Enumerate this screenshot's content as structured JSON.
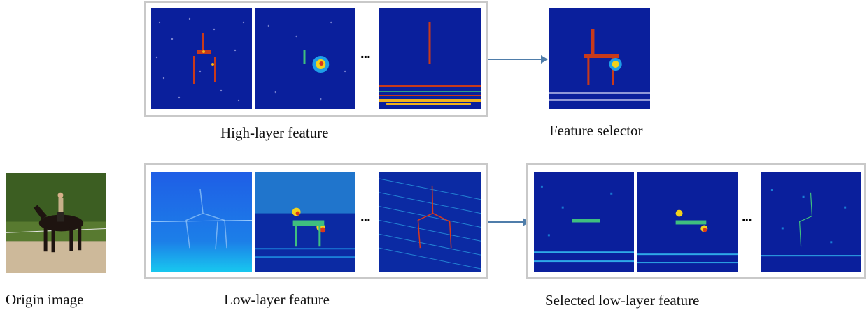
{
  "labels": {
    "origin": "Origin image",
    "high": "High-layer feature",
    "selector": "Feature selector",
    "low": "Low-layer feature",
    "selected": "Selected low-layer feature",
    "ellipsis": "..."
  },
  "colors": {
    "frame": "#c9c9c9",
    "arrow": "#4f7daa",
    "map_background": "#0a1f9c",
    "map_low_background": "#1f6fe0"
  }
}
